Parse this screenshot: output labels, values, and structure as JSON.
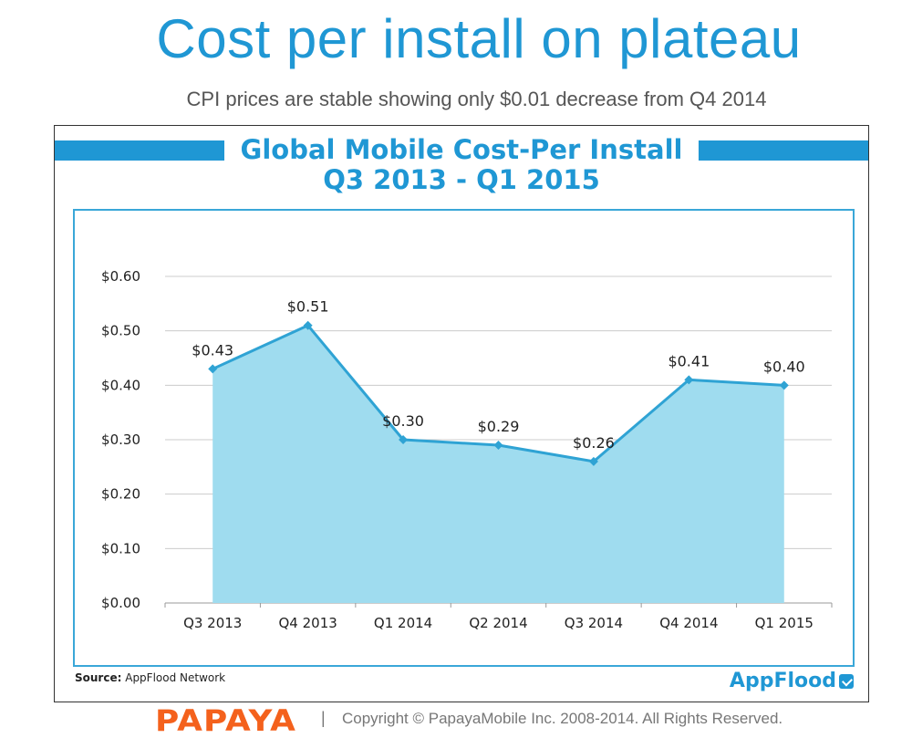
{
  "slide": {
    "title": "Cost per install on plateau",
    "subtitle": "CPI prices are stable showing only $0.01 decrease from Q4 2014"
  },
  "panel": {
    "title_line1": "Global Mobile Cost-Per Install",
    "title_line2": "Q3 2013 - Q1 2015",
    "source_label": "Source:",
    "source_value": "AppFlood Network",
    "brand": "AppFlood"
  },
  "footer": {
    "logo": "PAPAYA",
    "separator": "|",
    "copyright": "Copyright © PapayaMobile Inc. 2008-2014. All Rights Reserved."
  },
  "colors": {
    "accent": "#1f97d4",
    "area_fill": "#9fdcef",
    "line": "#2fa3d4",
    "grid": "#cccccc",
    "papaya": "#f4611c"
  },
  "chart_data": {
    "type": "area",
    "title": "Global Mobile Cost-Per Install Q3 2013 - Q1 2015",
    "xlabel": "",
    "ylabel": "",
    "categories": [
      "Q3 2013",
      "Q4 2013",
      "Q1 2014",
      "Q2 2014",
      "Q3 2014",
      "Q4 2014",
      "Q1 2015"
    ],
    "values": [
      0.43,
      0.51,
      0.3,
      0.29,
      0.26,
      0.41,
      0.4
    ],
    "data_labels": [
      "$0.43",
      "$0.51",
      "$0.30",
      "$0.29",
      "$0.26",
      "$0.41",
      "$0.40"
    ],
    "ylim": [
      0,
      0.6
    ],
    "yticks": [
      0,
      0.1,
      0.2,
      0.3,
      0.4,
      0.5,
      0.6
    ],
    "ytick_labels": [
      "$0.00",
      "$0.10",
      "$0.20",
      "$0.30",
      "$0.40",
      "$0.50",
      "$0.60"
    ],
    "grid": true,
    "legend": "none",
    "markers": "diamond"
  }
}
